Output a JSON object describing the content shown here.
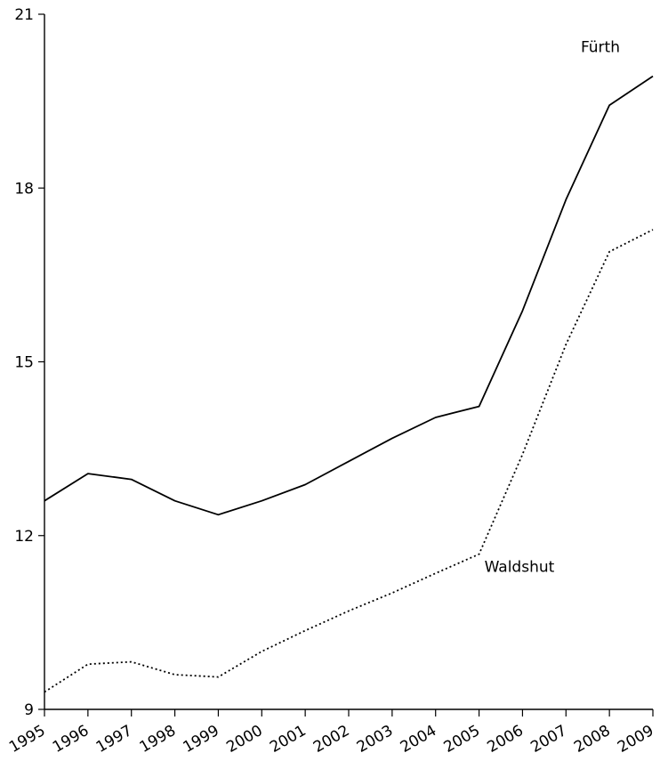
{
  "chart_data": {
    "type": "line",
    "title": "",
    "xlabel": "",
    "ylabel": "",
    "categories": [
      "1995",
      "1996",
      "1997",
      "1998",
      "1999",
      "2000",
      "2001",
      "2002",
      "2003",
      "2004",
      "2005",
      "2006",
      "2007",
      "2008",
      "2009"
    ],
    "ylim": [
      9,
      21
    ],
    "yticks": [
      "9",
      "12",
      "15",
      "18",
      "21"
    ],
    "grid": false,
    "legend": "none",
    "series": [
      {
        "name": "Fürth",
        "style": "solid",
        "color": "#000000",
        "values": [
          12.6,
          13.07,
          12.97,
          12.6,
          12.36,
          12.6,
          12.88,
          13.28,
          13.68,
          14.04,
          14.23,
          15.88,
          17.8,
          19.43,
          19.93
        ]
      },
      {
        "name": "Waldshut",
        "style": "dotted",
        "color": "#000000",
        "values": [
          9.3,
          9.78,
          9.82,
          9.6,
          9.56,
          10.0,
          10.36,
          10.7,
          11.01,
          11.35,
          11.68,
          13.4,
          15.3,
          16.9,
          17.28
        ]
      }
    ]
  }
}
